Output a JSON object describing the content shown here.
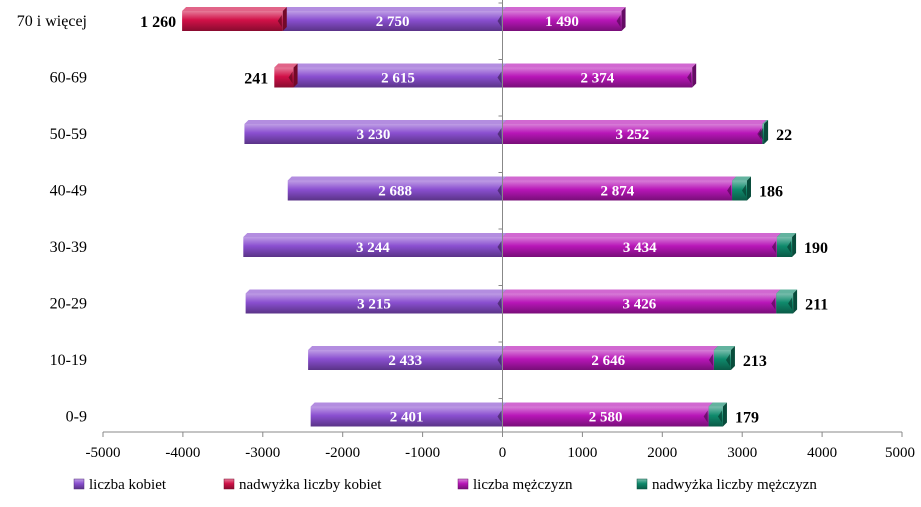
{
  "chart_data": {
    "type": "bar",
    "orientation": "horizontal",
    "stacked": true,
    "categories": [
      "70 i więcej",
      "60-69",
      "50-59",
      "40-49",
      "30-39",
      "20-29",
      "10-19",
      "0-9"
    ],
    "series": [
      {
        "name": "liczba kobiet",
        "values": [
          -2750,
          -2615,
          -3230,
          -2688,
          -3244,
          -3215,
          -2433,
          -2401
        ],
        "labels": [
          "2 750",
          "2 615",
          "3 230",
          "2 688",
          "3 244",
          "3 215",
          "2 433",
          "2 401"
        ],
        "color": "#8a4fd0"
      },
      {
        "name": "nadwyżka liczby kobiet",
        "values": [
          -1260,
          -241,
          0,
          0,
          0,
          0,
          0,
          0
        ],
        "labels": [
          "1 260",
          "241",
          "",
          "",
          "",
          "",
          "",
          ""
        ],
        "color": "#d11148"
      },
      {
        "name": "liczba mężczyzn",
        "values": [
          1490,
          2374,
          3252,
          2874,
          3434,
          3426,
          2646,
          2580
        ],
        "labels": [
          "1 490",
          "2 374",
          "3 252",
          "2 874",
          "3 434",
          "3 426",
          "2 646",
          "2 580"
        ],
        "color": "#b816b8"
      },
      {
        "name": "nadwyżka liczby mężczyzn",
        "values": [
          0,
          0,
          22,
          186,
          190,
          211,
          213,
          179
        ],
        "labels": [
          "",
          "",
          "22",
          "186",
          "190",
          "211",
          "213",
          "179"
        ],
        "color": "#0f8a6c"
      }
    ],
    "xlim": [
      -5000,
      5000
    ],
    "xticks": [
      -5000,
      -4000,
      -3000,
      -2000,
      -1000,
      0,
      1000,
      2000,
      3000,
      4000,
      5000
    ],
    "grid": false,
    "legend_position": "bottom"
  }
}
